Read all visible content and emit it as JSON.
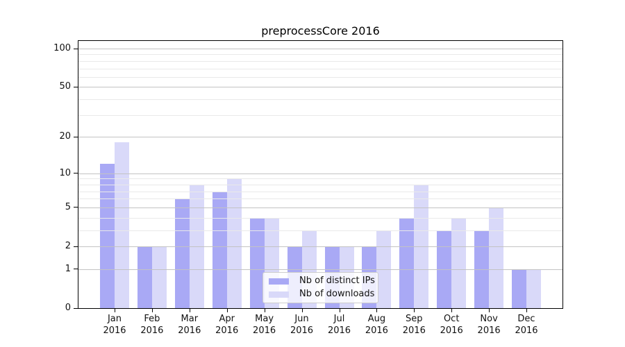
{
  "chart_data": {
    "type": "bar",
    "title": "preprocessCore 2016",
    "x_months": [
      "Jan",
      "Feb",
      "Mar",
      "Apr",
      "May",
      "Jun",
      "Jul",
      "Aug",
      "Sep",
      "Oct",
      "Nov",
      "Dec"
    ],
    "x_year": "2016",
    "series": [
      {
        "name": "Nb of distinct IPs",
        "color": "#a9a9f5",
        "values": [
          12,
          2,
          6,
          7,
          4,
          2,
          2,
          2,
          4,
          3,
          3,
          1
        ]
      },
      {
        "name": "Nb of downloads",
        "color": "#d9d9f9",
        "values": [
          18,
          2,
          8,
          9,
          4,
          3,
          2,
          3,
          8,
          4,
          5,
          1
        ]
      }
    ],
    "y_axis": {
      "scale": "log10(value+1)",
      "tick_values": [
        0,
        1,
        2,
        5,
        10,
        20,
        50,
        100
      ],
      "minor_grid_values": [
        3,
        4,
        6,
        7,
        8,
        9,
        30,
        40,
        60,
        70,
        80,
        90
      ],
      "ylim": [
        0,
        113
      ]
    },
    "legend_position": "bottom-center",
    "grid": true
  },
  "colors": {
    "background": "#ffffff",
    "axis": "#000000",
    "text": "#111111",
    "major_grid": "#c3c3c3",
    "minor_grid": "#e9e9e9",
    "legend_border": "#cccccc"
  }
}
